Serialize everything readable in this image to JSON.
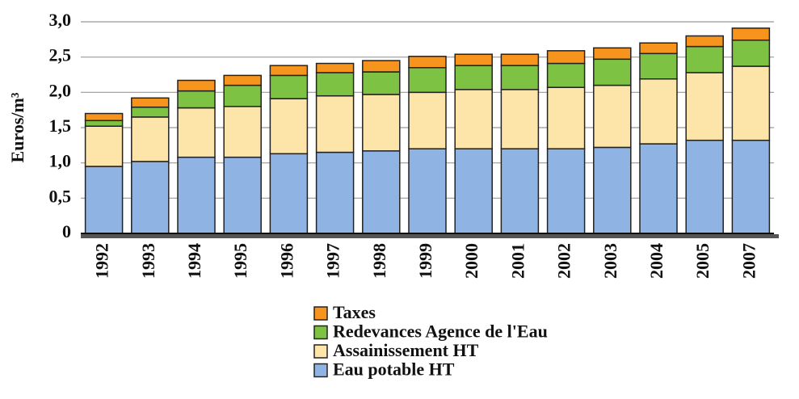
{
  "chart_data": {
    "type": "stacked_bar",
    "ylabel": "Euros/m³",
    "categories": [
      "1992",
      "1993",
      "1994",
      "1995",
      "1996",
      "1997",
      "1998",
      "1999",
      "2000",
      "2001",
      "2002",
      "2003",
      "2004",
      "2005",
      "2007"
    ],
    "series": [
      {
        "name": "Eau potable HT",
        "color": "#8fb4e3",
        "values": [
          0.95,
          1.02,
          1.08,
          1.08,
          1.13,
          1.15,
          1.17,
          1.2,
          1.2,
          1.2,
          1.2,
          1.22,
          1.27,
          1.32,
          1.32
        ]
      },
      {
        "name": "Assainissement HT",
        "color": "#fde4a8",
        "values": [
          0.57,
          0.63,
          0.7,
          0.72,
          0.78,
          0.8,
          0.8,
          0.8,
          0.84,
          0.84,
          0.87,
          0.88,
          0.92,
          0.96,
          1.05
        ]
      },
      {
        "name": "Redevances Agence de l'Eau",
        "color": "#7dc242",
        "values": [
          0.08,
          0.14,
          0.24,
          0.3,
          0.33,
          0.33,
          0.32,
          0.35,
          0.34,
          0.34,
          0.34,
          0.37,
          0.36,
          0.37,
          0.37
        ]
      },
      {
        "name": "Taxes",
        "color": "#f7941d",
        "values": [
          0.1,
          0.13,
          0.15,
          0.14,
          0.14,
          0.13,
          0.16,
          0.16,
          0.16,
          0.16,
          0.18,
          0.16,
          0.15,
          0.15,
          0.17
        ]
      }
    ],
    "ylim": [
      0,
      3
    ],
    "yticks": [
      0,
      {
        "value": 0.5,
        "label": "0,5"
      },
      {
        "value": 1,
        "label": "1,0"
      },
      {
        "value": 1.5,
        "label": "1,5"
      },
      {
        "value": 2,
        "label": "2,0"
      },
      {
        "value": 2.5,
        "label": "2,5"
      },
      {
        "value": 3,
        "label": "3,0"
      }
    ],
    "grid": true
  }
}
